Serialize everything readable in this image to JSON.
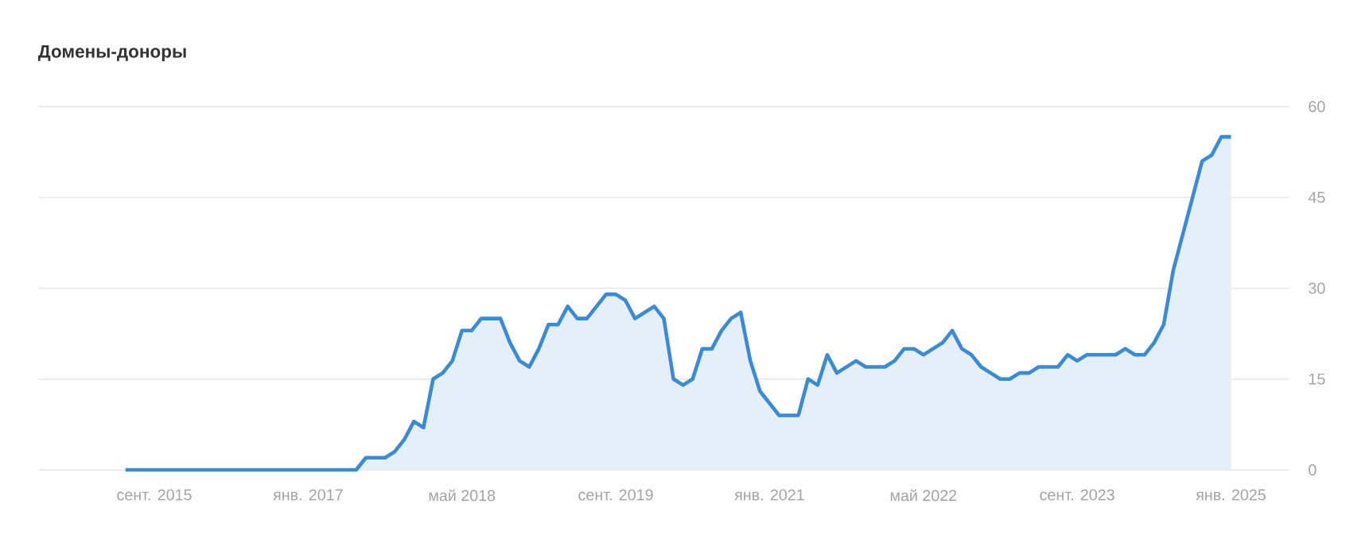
{
  "chart_data": {
    "type": "area",
    "title": "Домены-доноры",
    "x": [
      "2015-06",
      "2015-07",
      "2015-08",
      "2015-09",
      "2015-10",
      "2015-11",
      "2015-12",
      "2016-01",
      "2016-02",
      "2016-03",
      "2016-04",
      "2016-05",
      "2016-06",
      "2016-07",
      "2016-08",
      "2016-09",
      "2016-10",
      "2016-11",
      "2016-12",
      "2017-01",
      "2017-02",
      "2017-03",
      "2017-04",
      "2017-05",
      "2017-06",
      "2017-07",
      "2017-08",
      "2017-09",
      "2017-10",
      "2017-11",
      "2017-12",
      "2018-01",
      "2018-02",
      "2018-03",
      "2018-04",
      "2018-05",
      "2018-06",
      "2018-07",
      "2018-08",
      "2018-09",
      "2018-10",
      "2018-11",
      "2018-12",
      "2019-01",
      "2019-02",
      "2019-03",
      "2019-04",
      "2019-05",
      "2019-06",
      "2019-07",
      "2019-08",
      "2019-09",
      "2019-10",
      "2019-11",
      "2019-12",
      "2020-01",
      "2020-02",
      "2020-03",
      "2020-04",
      "2020-05",
      "2020-06",
      "2020-07",
      "2020-08",
      "2020-09",
      "2020-10",
      "2020-11",
      "2020-12",
      "2021-01",
      "2021-02",
      "2021-03",
      "2021-04",
      "2021-05",
      "2021-06",
      "2021-07",
      "2021-08",
      "2021-09",
      "2021-10",
      "2021-11",
      "2021-12",
      "2022-01",
      "2022-02",
      "2022-03",
      "2022-04",
      "2022-05",
      "2022-06",
      "2022-07",
      "2022-08",
      "2022-09",
      "2022-10",
      "2022-11",
      "2022-12",
      "2023-01",
      "2023-02",
      "2023-03",
      "2023-04",
      "2023-05",
      "2023-06",
      "2023-07",
      "2023-08",
      "2023-09",
      "2023-10",
      "2023-11",
      "2023-12",
      "2024-01",
      "2024-02",
      "2024-03",
      "2024-04",
      "2024-05",
      "2024-06",
      "2024-07",
      "2024-08",
      "2024-09",
      "2024-10",
      "2024-11",
      "2024-12",
      "2025-01"
    ],
    "values": [
      0,
      0,
      0,
      0,
      0,
      0,
      0,
      0,
      0,
      0,
      0,
      0,
      0,
      0,
      0,
      0,
      0,
      0,
      0,
      0,
      0,
      0,
      0,
      0,
      0,
      2,
      2,
      2,
      3,
      5,
      8,
      7,
      15,
      16,
      18,
      23,
      23,
      25,
      25,
      25,
      21,
      18,
      17,
      20,
      24,
      24,
      27,
      25,
      25,
      27,
      29,
      29,
      28,
      25,
      26,
      27,
      25,
      15,
      14,
      15,
      20,
      20,
      23,
      25,
      26,
      18,
      13,
      11,
      9,
      9,
      9,
      15,
      14,
      19,
      16,
      17,
      18,
      17,
      17,
      17,
      18,
      20,
      20,
      19,
      20,
      21,
      23,
      20,
      19,
      17,
      16,
      15,
      15,
      16,
      16,
      17,
      17,
      17,
      19,
      18,
      19,
      19,
      19,
      19,
      20,
      19,
      19,
      21,
      24,
      33,
      39,
      45,
      51,
      52,
      55,
      55
    ],
    "color": "#3b8ad6",
    "xlim": [
      "2014-09",
      "2025-07"
    ],
    "xticks": [
      {
        "value": "2015-09",
        "label": "сент. 2015"
      },
      {
        "value": "2017-01",
        "label": "янв. 2017"
      },
      {
        "value": "2018-05",
        "label": "май 2018"
      },
      {
        "value": "2019-09",
        "label": "сент. 2019"
      },
      {
        "value": "2021-01",
        "label": "янв. 2021"
      },
      {
        "value": "2022-05",
        "label": "май 2022"
      },
      {
        "value": "2023-09",
        "label": "сент. 2023"
      },
      {
        "value": "2025-01",
        "label": "янв. 2025"
      }
    ],
    "ylim": [
      0,
      60
    ],
    "yticks": [
      0,
      15,
      30,
      45,
      60
    ],
    "grid": "y"
  }
}
